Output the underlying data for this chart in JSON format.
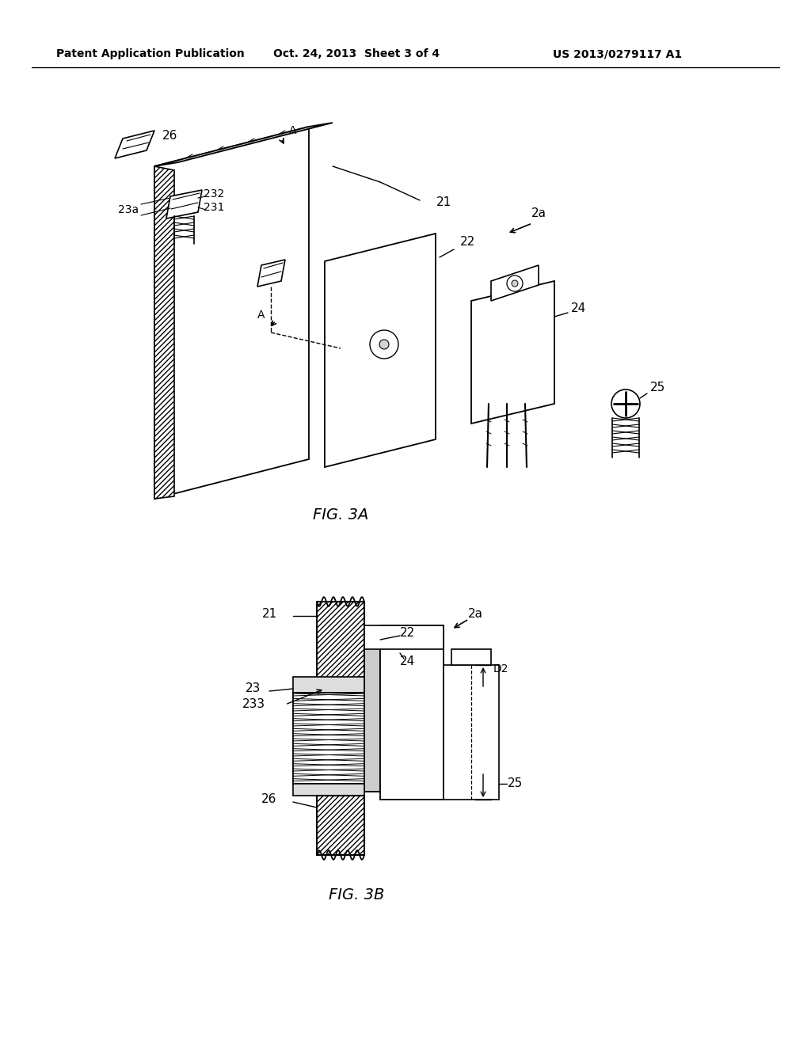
{
  "bg_color": "#ffffff",
  "line_color": "#000000",
  "header_text": "Patent Application Publication",
  "header_date": "Oct. 24, 2013  Sheet 3 of 4",
  "header_patent": "US 2013/0279117 A1",
  "fig3a_label": "FIG. 3A",
  "fig3b_label": "FIG. 3B",
  "hatch_color": "#555555",
  "fig_width": 10.24,
  "fig_height": 13.2
}
